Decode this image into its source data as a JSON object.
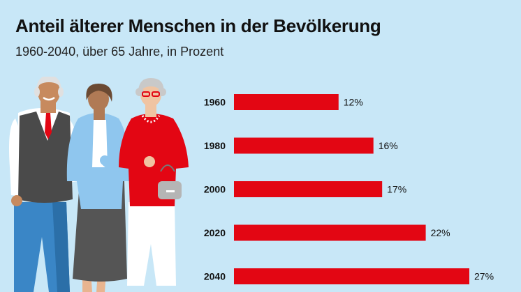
{
  "title": "Anteil älterer Menschen in der Bevölkerung",
  "subtitle": "1960-2040, über 65 Jahre, in Prozent",
  "colors": {
    "background": "#c8e7f7",
    "bar": "#e30613"
  },
  "chart_data": {
    "type": "bar",
    "orientation": "horizontal",
    "categories": [
      "1960",
      "1980",
      "2000",
      "2020",
      "2040"
    ],
    "values": [
      12,
      16,
      17,
      22,
      27
    ],
    "value_labels": [
      "12%",
      "16%",
      "17%",
      "22%",
      "27%"
    ],
    "unit": "%",
    "xlim": [
      0,
      27
    ],
    "grid": false,
    "legend": "none"
  }
}
